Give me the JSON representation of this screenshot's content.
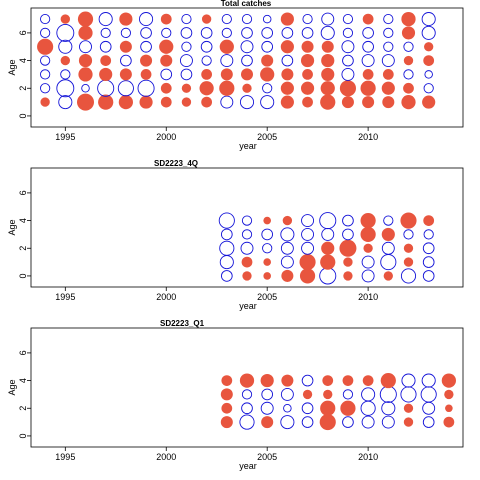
{
  "chart_data": [
    {
      "type": "scatter",
      "title": "Total catches",
      "xlabel": "year",
      "ylabel": "Age",
      "xlim": [
        1993.3,
        2014.7
      ],
      "ylim": [
        -0.8,
        7.8
      ],
      "xticks": [
        1995,
        2000,
        2005,
        2010
      ],
      "yticks": [
        0,
        2,
        4,
        6
      ],
      "years": [
        1994,
        1995,
        1996,
        1997,
        1998,
        1999,
        2000,
        2001,
        2002,
        2003,
        2004,
        2005,
        2006,
        2007,
        2008,
        2009,
        2010,
        2011,
        2012,
        2013
      ],
      "ages": [
        1,
        2,
        3,
        4,
        5,
        6,
        7
      ],
      "residuals": [
        [
          0.3,
          -0.6,
          1.0,
          0.8,
          0.7,
          0.6,
          0.4,
          0.3,
          0.4,
          -0.5,
          -0.6,
          -0.6,
          0.6,
          0.4,
          0.8,
          0.5,
          0.5,
          0.5,
          0.7,
          0.6
        ],
        [
          -0.3,
          -1.0,
          -0.2,
          -0.9,
          -0.8,
          -0.9,
          0.4,
          0.3,
          0.7,
          0.8,
          0.3,
          -0.3,
          0.6,
          0.6,
          0.7,
          0.9,
          0.8,
          0.6,
          0.4,
          -0.3
        ],
        [
          -0.3,
          -0.3,
          0.7,
          0.6,
          0.5,
          0.4,
          -0.4,
          -0.4,
          0.4,
          0.5,
          0.5,
          0.7,
          0.5,
          0.4,
          0.6,
          -0.5,
          0.4,
          0.4,
          -0.3,
          -0.2
        ],
        [
          -0.3,
          0.3,
          0.6,
          0.4,
          -0.4,
          0.5,
          0.5,
          -0.5,
          -0.3,
          -0.5,
          -0.4,
          0.5,
          -0.4,
          0.6,
          0.6,
          -0.4,
          -0.5,
          -0.5,
          0.3,
          0.4
        ],
        [
          0.9,
          -0.6,
          -0.5,
          -0.4,
          0.5,
          -0.4,
          0.7,
          -0.3,
          -0.4,
          0.7,
          -0.5,
          -0.4,
          0.6,
          0.5,
          0.5,
          -0.5,
          -0.4,
          -0.3,
          -0.3,
          0.3
        ],
        [
          -0.3,
          -1.0,
          0.7,
          -0.3,
          -0.3,
          -0.4,
          -0.3,
          -0.4,
          -0.4,
          -0.3,
          -0.4,
          -0.4,
          -0.4,
          -0.4,
          -0.6,
          -0.3,
          -0.4,
          -0.3,
          0.6,
          -0.6
        ],
        [
          -0.3,
          0.3,
          0.8,
          -0.6,
          0.6,
          -0.6,
          0.4,
          -0.3,
          0.3,
          -0.3,
          -0.3,
          -0.2,
          0.6,
          -0.3,
          -0.5,
          -0.3,
          0.4,
          -0.3,
          0.7,
          -0.6
        ]
      ]
    },
    {
      "type": "scatter",
      "title": "SD2223_4Q",
      "xlabel": "year",
      "ylabel": "Age",
      "xlim": [
        1993.3,
        2014.7
      ],
      "ylim": [
        -0.8,
        7.8
      ],
      "xticks": [
        1995,
        2000,
        2005,
        2010
      ],
      "yticks": [
        0,
        2,
        4,
        6
      ],
      "years": [
        2003,
        2004,
        2005,
        2006,
        2007,
        2008,
        2009,
        2010,
        2011,
        2012,
        2013
      ],
      "ages": [
        0,
        1,
        2,
        3,
        4
      ],
      "residuals": [
        [
          -0.4,
          0.3,
          0.2,
          0.5,
          0.8,
          -0.9,
          0.3,
          -0.5,
          0.3,
          -0.7,
          -0.4
        ],
        [
          -0.6,
          0.4,
          0.2,
          -0.5,
          0.9,
          0.8,
          0.3,
          -0.5,
          -0.8,
          0.3,
          -0.4
        ],
        [
          -0.7,
          -0.5,
          -0.3,
          -0.5,
          -0.5,
          0.6,
          1.0,
          0.3,
          -0.5,
          0.3,
          -0.4
        ],
        [
          -0.4,
          -0.3,
          -0.4,
          -0.6,
          -0.5,
          -0.5,
          -0.4,
          0.8,
          0.6,
          -0.3,
          -0.3
        ],
        [
          -0.8,
          -0.3,
          0.2,
          0.3,
          -0.5,
          -0.9,
          -0.4,
          0.8,
          -0.3,
          0.9,
          0.4
        ]
      ]
    },
    {
      "type": "scatter",
      "title": "SD2223_Q1",
      "xlabel": "year",
      "ylabel": "Age",
      "xlim": [
        1993.3,
        2014.7
      ],
      "ylim": [
        -0.8,
        7.8
      ],
      "xticks": [
        1995,
        2000,
        2005,
        2010
      ],
      "yticks": [
        0,
        2,
        4,
        6
      ],
      "years": [
        2003,
        2004,
        2005,
        2006,
        2007,
        2008,
        2009,
        2010,
        2011,
        2012,
        2013,
        2014
      ],
      "ages": [
        1,
        2,
        3,
        4
      ],
      "residuals": [
        [
          0.5,
          -0.7,
          0.5,
          -0.6,
          -0.4,
          0.9,
          -0.4,
          -0.5,
          -0.5,
          0.3,
          -0.4,
          0.4
        ],
        [
          0.4,
          -0.4,
          -0.5,
          -0.2,
          -0.4,
          0.8,
          0.8,
          -0.7,
          -0.6,
          0.3,
          -0.5,
          0.2
        ],
        [
          0.5,
          -0.3,
          -0.4,
          -0.5,
          0.3,
          0.3,
          -0.3,
          -0.6,
          -0.9,
          -0.8,
          -0.8,
          0.3
        ],
        [
          0.4,
          0.7,
          0.6,
          0.5,
          -0.4,
          0.4,
          0.4,
          0.4,
          0.8,
          -0.6,
          -0.6,
          0.7
        ]
      ]
    }
  ]
}
